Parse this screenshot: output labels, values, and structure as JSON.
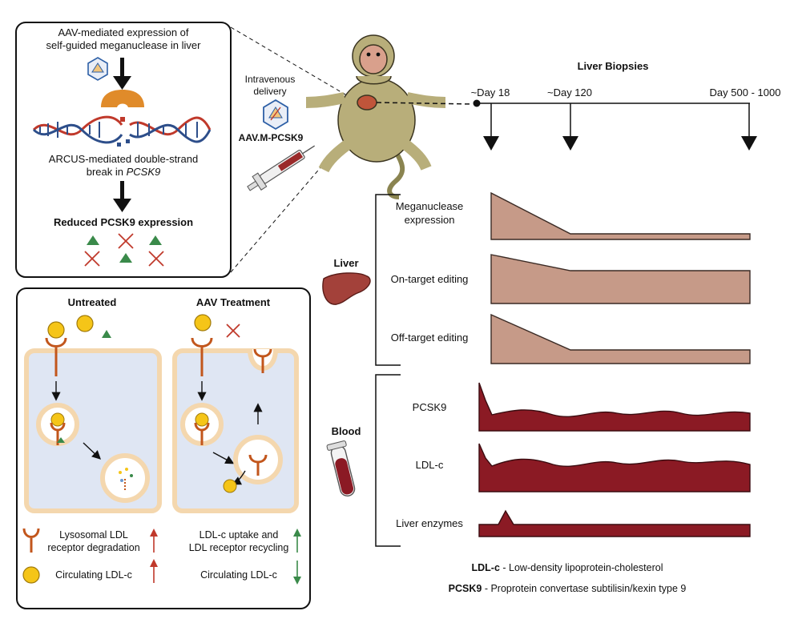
{
  "mechanism_panel": {
    "line1": "AAV-mediated expression of",
    "line2": "self-guided meganuclease in liver",
    "break_line1": "ARCUS-mediated double-strand",
    "break_line2_prefix": "break in ",
    "break_line2_gene": "PCSK9",
    "result": "Reduced PCSK9 expression"
  },
  "delivery": {
    "line1": "Intravenous",
    "line2": "delivery",
    "vector": "AAV.M-PCSK9"
  },
  "timeline": {
    "title": "Liver Biopsies",
    "points": [
      "~Day 18",
      "~Day 120",
      "Day 500 - 1000"
    ]
  },
  "cell_panel": {
    "untreated_title": "Untreated",
    "treated_title": "AAV Treatment",
    "legend": {
      "left_row1_line1": "Lysosomal LDL",
      "left_row1_line2": "receptor degradation",
      "left_row2": "Circulating LDL-c",
      "right_row1_line1": "LDL-c uptake and",
      "right_row1_line2": "LDL receptor recycling",
      "right_row2": "Circulating LDL-c"
    }
  },
  "sections": {
    "liver": "Liver",
    "blood": "Blood"
  },
  "measures": {
    "meganuclease_line1": "Meganuclease",
    "meganuclease_line2": "expression",
    "on_target": "On-target editing",
    "off_target": "Off-target editing",
    "pcsk9": "PCSK9",
    "ldlc": "LDL-c",
    "liver_enzymes": "Liver enzymes"
  },
  "footnotes": {
    "ldlc_abbr": "LDL-c",
    "ldlc_def": " - Low-density lipoprotein-cholesterol",
    "pcsk9_abbr": "PCSK9",
    "pcsk9_def": " - Proprotein convertase subtilisin/kexin type 9"
  },
  "colors": {
    "liver_fill": "#c69a88",
    "blood_fill": "#8b1a24",
    "cell_fill": "#dfe6f3",
    "cell_border": "#f4d7ae",
    "receptor": "#c2561c",
    "ldl": "#f5c518",
    "pcsk9_triangle": "#3a8a4a",
    "cross": "#c0392b",
    "up_red": "#c0392b",
    "up_green": "#3a8a4a"
  }
}
